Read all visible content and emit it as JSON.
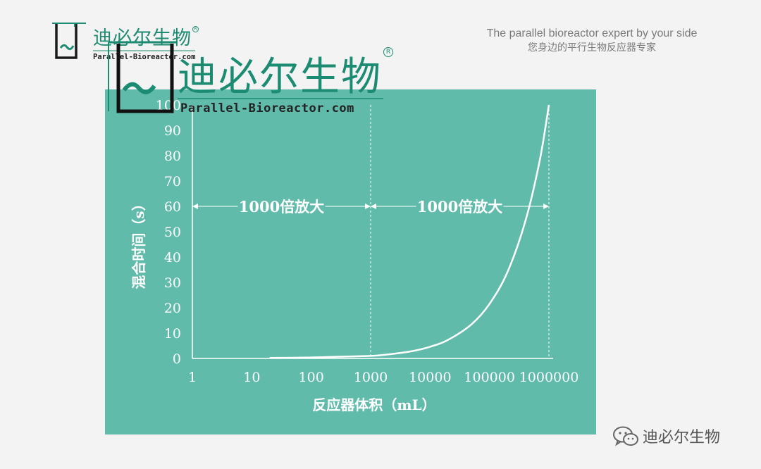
{
  "header": {
    "tagline_en": "The parallel bioreactor expert  by your side",
    "tagline_zh": "您身边的平行生物反应器专家"
  },
  "logo": {
    "name": "迪必尔生物",
    "site": "Parallel-Bioreactor.com",
    "registered_mark": "R",
    "color": "#1e8b72"
  },
  "chart_data": {
    "type": "line",
    "title": "",
    "xlabel": "反应器体积（mL）",
    "ylabel": "混合时间（s）",
    "x_scale": "log",
    "x_ticks": [
      "1",
      "10",
      "100",
      "1000",
      "10000",
      "100000",
      "1000000"
    ],
    "x_tick_values": [
      1,
      10,
      100,
      1000,
      10000,
      100000,
      1000000
    ],
    "y_ticks": [
      "0",
      "10",
      "20",
      "30",
      "40",
      "50",
      "60",
      "70",
      "80",
      "90",
      "100"
    ],
    "ylim": [
      0,
      100
    ],
    "grid": false,
    "series": [
      {
        "x": [
          20,
          100,
          300,
          1000,
          2000,
          5000,
          10000,
          20000,
          50000,
          100000,
          200000,
          400000,
          700000,
          1000000
        ],
        "y": [
          0.2,
          0.4,
          0.7,
          1,
          1.6,
          2.9,
          4.6,
          7.3,
          13.5,
          21.5,
          34,
          54,
          78,
          100
        ]
      }
    ],
    "annotations": [
      {
        "text": "1000倍放大",
        "x_from": 1,
        "x_to": 1000,
        "y": 60
      },
      {
        "text": "1000倍放大",
        "x_from": 1000,
        "x_to": 1000000,
        "y": 60
      }
    ],
    "reference_lines_x": [
      1000,
      1000000
    ],
    "colors": {
      "background": "#61bbaa",
      "foreground": "#ffffff"
    }
  },
  "footer": {
    "wechat_account": "迪必尔生物",
    "icon": "wechat-icon"
  }
}
